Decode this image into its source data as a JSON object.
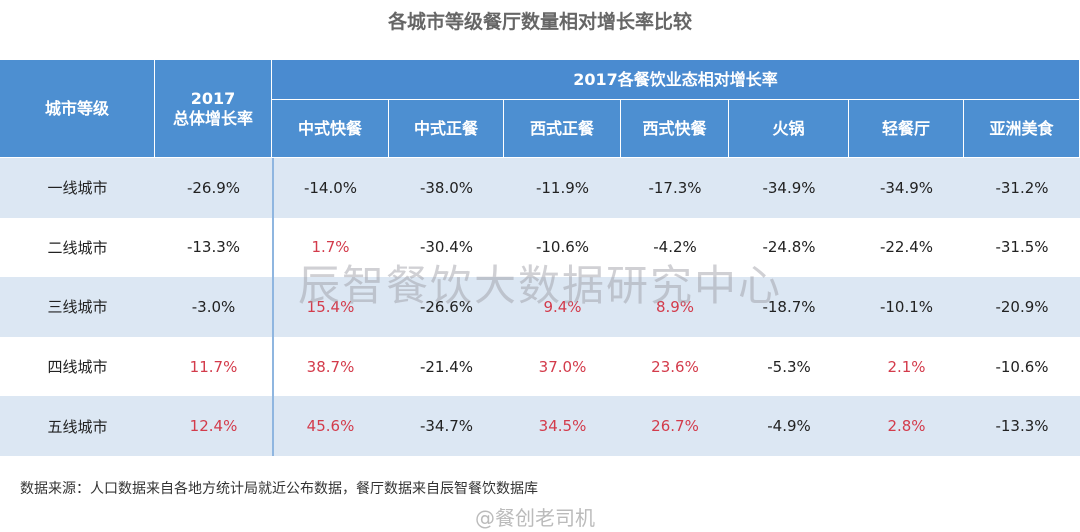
{
  "header": {
    "title": "各城市等级餐厅数量相对增长率比较"
  },
  "table": {
    "corner": "城市等级",
    "overall_header": "2017\n总体增长率",
    "group_header": "2017各餐饮业态相对增长率",
    "columns": [
      "中式快餐",
      "中式正餐",
      "西式正餐",
      "西式快餐",
      "火锅",
      "轻餐厅",
      "亚洲美食"
    ],
    "rows": [
      [
        "一线城市",
        "-26.9%",
        "-14.0%",
        "-38.0%",
        "-11.9%",
        "-17.3%",
        "-34.9%",
        "-34.9%",
        "-31.2%"
      ],
      [
        "二线城市",
        "-13.3%",
        "1.7%",
        "-30.4%",
        "-10.6%",
        "-4.2%",
        "-24.8%",
        "-22.4%",
        "-31.5%"
      ],
      [
        "三线城市",
        "-3.0%",
        "15.4%",
        "-26.6%",
        "9.4%",
        "8.9%",
        "-18.7%",
        "-10.1%",
        "-20.9%"
      ],
      [
        "四线城市",
        "11.7%",
        "38.7%",
        "-21.4%",
        "37.0%",
        "23.6%",
        "-5.3%",
        "2.1%",
        "-10.6%"
      ],
      [
        "五线城市",
        "12.4%",
        "45.6%",
        "-34.7%",
        "34.5%",
        "26.7%",
        "-4.9%",
        "2.8%",
        "-13.3%"
      ]
    ]
  },
  "watermark": "辰智餐饮大数据研究中心",
  "source": "数据来源：人口数据来自各地方统计局就近公布数据，餐厅数据来自辰智餐饮数据库",
  "watermark2": "@餐创老司机"
}
